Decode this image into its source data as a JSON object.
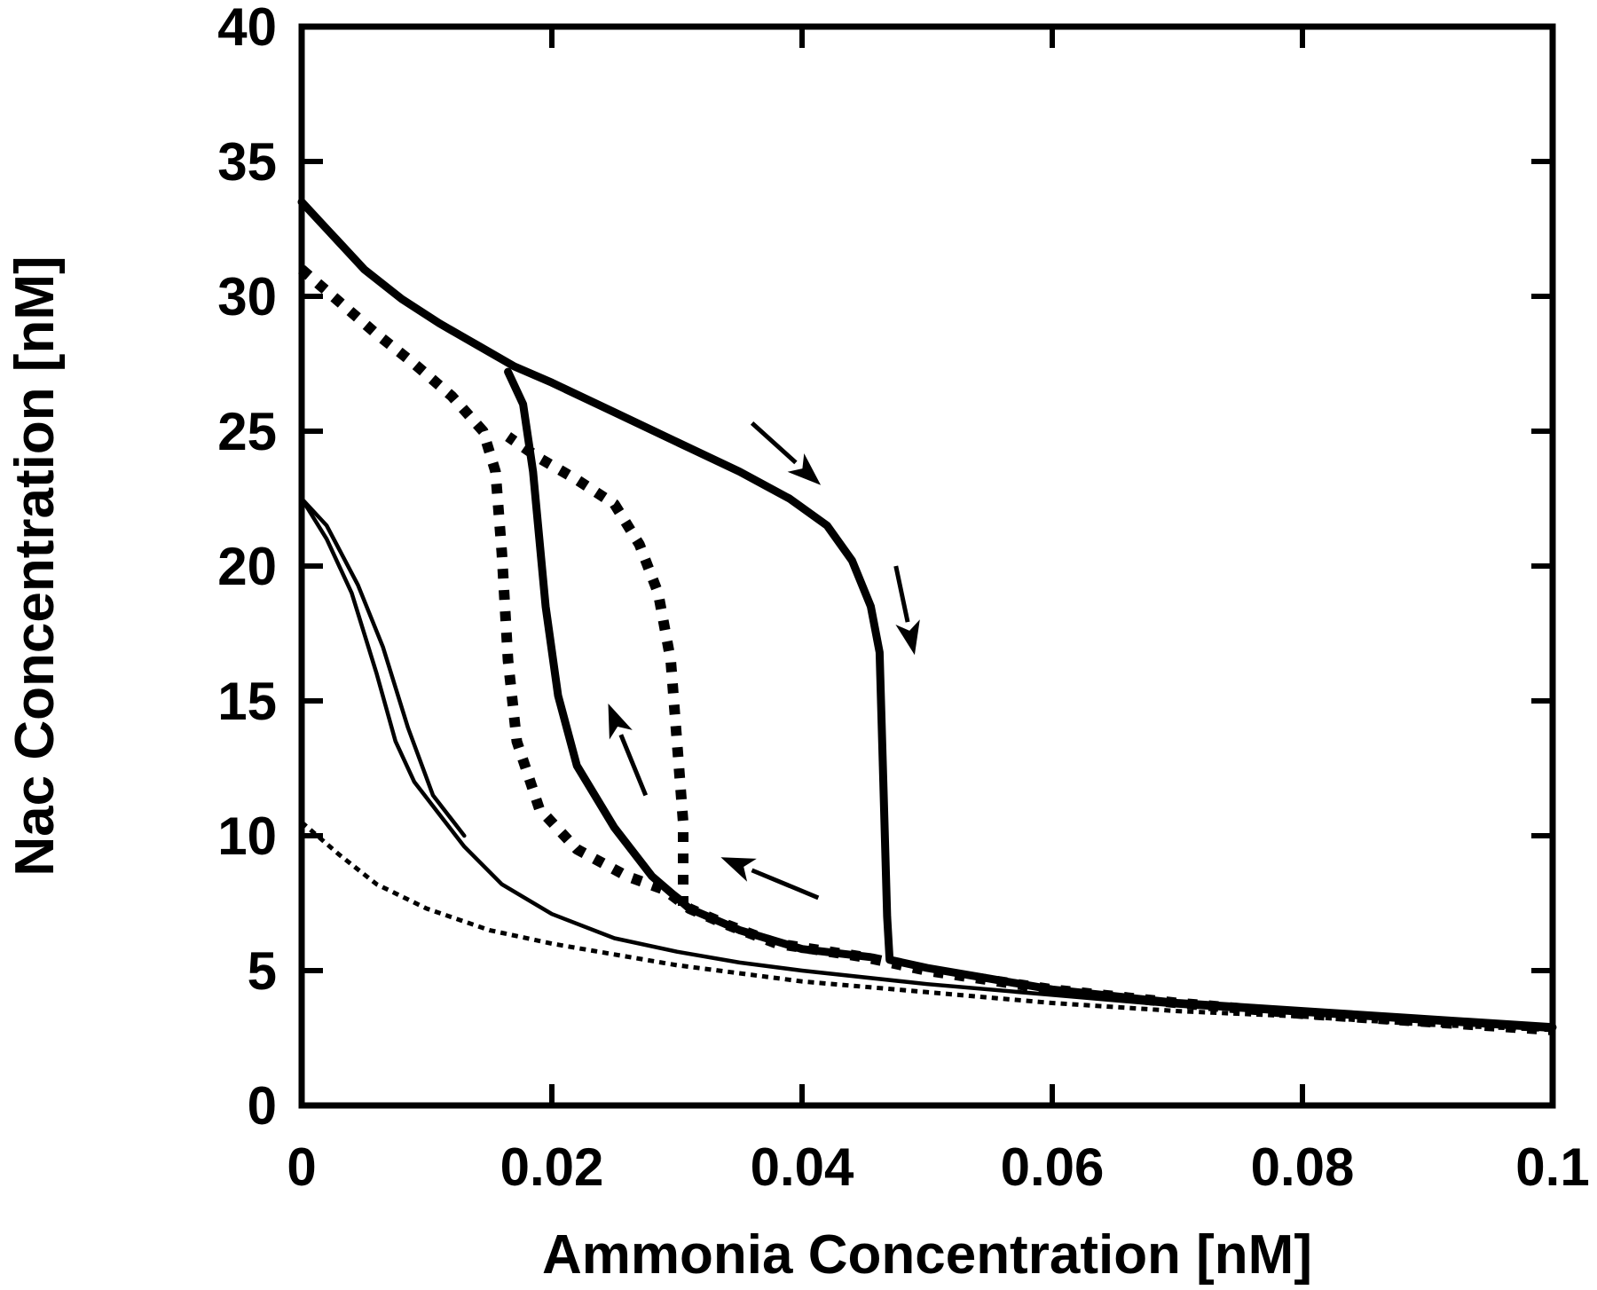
{
  "chart_data": {
    "type": "line",
    "xlabel": "Ammonia Concentration [nM]",
    "ylabel": "Nac Concentration [nM]",
    "xlim": [
      0,
      0.1
    ],
    "ylim": [
      0,
      40
    ],
    "x_ticks": [
      "0",
      "0.02",
      "0.04",
      "0.06",
      "0.08",
      "0.1"
    ],
    "y_ticks": [
      "0",
      "5",
      "10",
      "15",
      "20",
      "25",
      "30",
      "35",
      "40"
    ],
    "grid": false,
    "legend": "none",
    "series": [
      {
        "style": "thick-solid",
        "color": "#000000",
        "points": [
          [
            0.0,
            33.5
          ],
          [
            0.002,
            32.5
          ],
          [
            0.005,
            31.0
          ],
          [
            0.008,
            29.9
          ],
          [
            0.011,
            29.0
          ],
          [
            0.014,
            28.2
          ],
          [
            0.017,
            27.4
          ],
          [
            0.02,
            26.8
          ],
          [
            0.025,
            25.7
          ],
          [
            0.03,
            24.6
          ],
          [
            0.035,
            23.5
          ],
          [
            0.039,
            22.5
          ],
          [
            0.042,
            21.5
          ],
          [
            0.044,
            20.2
          ],
          [
            0.0455,
            18.5
          ],
          [
            0.0462,
            16.8
          ],
          [
            0.0465,
            12.0
          ],
          [
            0.0468,
            7.0
          ],
          [
            0.047,
            5.4
          ],
          [
            0.05,
            5.1
          ],
          [
            0.055,
            4.7
          ],
          [
            0.06,
            4.3
          ],
          [
            0.07,
            3.8
          ],
          [
            0.08,
            3.5
          ],
          [
            0.09,
            3.2
          ],
          [
            0.1,
            2.9
          ]
        ]
      },
      {
        "style": "thick-solid",
        "color": "#000000",
        "points": [
          [
            0.0455,
            5.5
          ],
          [
            0.04,
            5.8
          ],
          [
            0.035,
            6.5
          ],
          [
            0.031,
            7.3
          ],
          [
            0.028,
            8.5
          ],
          [
            0.025,
            10.3
          ],
          [
            0.022,
            12.6
          ],
          [
            0.0205,
            15.2
          ],
          [
            0.0195,
            18.5
          ],
          [
            0.019,
            21.0
          ],
          [
            0.0185,
            23.5
          ],
          [
            0.0177,
            26.0
          ],
          [
            0.0165,
            27.2
          ]
        ]
      },
      {
        "style": "thick-dotted",
        "color": "#000000",
        "points": [
          [
            0.0,
            31.0
          ],
          [
            0.003,
            29.8
          ],
          [
            0.006,
            28.6
          ],
          [
            0.009,
            27.5
          ],
          [
            0.012,
            26.3
          ],
          [
            0.0145,
            25.0
          ],
          [
            0.0155,
            23.5
          ],
          [
            0.016,
            20.5
          ],
          [
            0.0165,
            16.5
          ],
          [
            0.0172,
            13.5
          ],
          [
            0.019,
            11.0
          ],
          [
            0.022,
            9.5
          ],
          [
            0.026,
            8.5
          ],
          [
            0.029,
            8.0
          ],
          [
            0.031,
            7.3
          ],
          [
            0.034,
            6.7
          ],
          [
            0.038,
            6.0
          ],
          [
            0.045,
            5.5
          ],
          [
            0.05,
            5.0
          ],
          [
            0.06,
            4.3
          ],
          [
            0.07,
            3.8
          ],
          [
            0.08,
            3.4
          ],
          [
            0.09,
            3.1
          ],
          [
            0.1,
            2.8
          ]
        ]
      },
      {
        "style": "thick-dotted",
        "color": "#000000",
        "points": [
          [
            0.0305,
            7.4
          ],
          [
            0.0305,
            9.0
          ],
          [
            0.0305,
            10.5
          ],
          [
            0.03,
            13.5
          ],
          [
            0.0295,
            16.5
          ],
          [
            0.0285,
            19.0
          ],
          [
            0.027,
            20.8
          ],
          [
            0.025,
            22.3
          ],
          [
            0.022,
            23.2
          ],
          [
            0.019,
            24.0
          ],
          [
            0.0165,
            24.8
          ]
        ]
      },
      {
        "style": "thin-solid",
        "color": "#000000",
        "points": [
          [
            0.0,
            22.5
          ],
          [
            0.002,
            21.0
          ],
          [
            0.004,
            19.0
          ],
          [
            0.006,
            16.0
          ],
          [
            0.0075,
            13.5
          ],
          [
            0.009,
            12.0
          ],
          [
            0.011,
            10.8
          ],
          [
            0.013,
            9.6
          ],
          [
            0.016,
            8.2
          ],
          [
            0.02,
            7.1
          ],
          [
            0.025,
            6.2
          ],
          [
            0.03,
            5.7
          ],
          [
            0.035,
            5.3
          ],
          [
            0.04,
            5.0
          ],
          [
            0.05,
            4.5
          ],
          [
            0.06,
            4.1
          ],
          [
            0.07,
            3.7
          ],
          [
            0.08,
            3.4
          ],
          [
            0.09,
            3.1
          ],
          [
            0.1,
            2.8
          ]
        ]
      },
      {
        "style": "thin-solid",
        "color": "#000000",
        "points": [
          [
            0.0,
            22.5
          ],
          [
            0.002,
            21.5
          ],
          [
            0.0045,
            19.3
          ],
          [
            0.0065,
            17.0
          ],
          [
            0.0085,
            14.0
          ],
          [
            0.0105,
            11.5
          ],
          [
            0.013,
            10.0
          ]
        ]
      },
      {
        "style": "thin-dotted",
        "color": "#000000",
        "points": [
          [
            0.0,
            10.5
          ],
          [
            0.003,
            9.3
          ],
          [
            0.006,
            8.2
          ],
          [
            0.01,
            7.3
          ],
          [
            0.015,
            6.5
          ],
          [
            0.02,
            6.0
          ],
          [
            0.025,
            5.6
          ],
          [
            0.03,
            5.2
          ],
          [
            0.035,
            4.9
          ],
          [
            0.04,
            4.6
          ],
          [
            0.05,
            4.2
          ],
          [
            0.06,
            3.8
          ],
          [
            0.07,
            3.5
          ],
          [
            0.08,
            3.3
          ],
          [
            0.09,
            3.0
          ],
          [
            0.1,
            2.8
          ]
        ]
      }
    ],
    "annotations": [
      {
        "type": "arrow",
        "from": [
          0.036,
          25.3
        ],
        "to": [
          0.0415,
          23.0
        ]
      },
      {
        "type": "arrow",
        "from": [
          0.0475,
          20.0
        ],
        "to": [
          0.049,
          16.7
        ]
      },
      {
        "type": "arrow",
        "from": [
          0.0275,
          11.5
        ],
        "to": [
          0.0245,
          14.9
        ]
      },
      {
        "type": "arrow",
        "from": [
          0.0413,
          7.7
        ],
        "to": [
          0.0335,
          9.2
        ]
      }
    ]
  }
}
